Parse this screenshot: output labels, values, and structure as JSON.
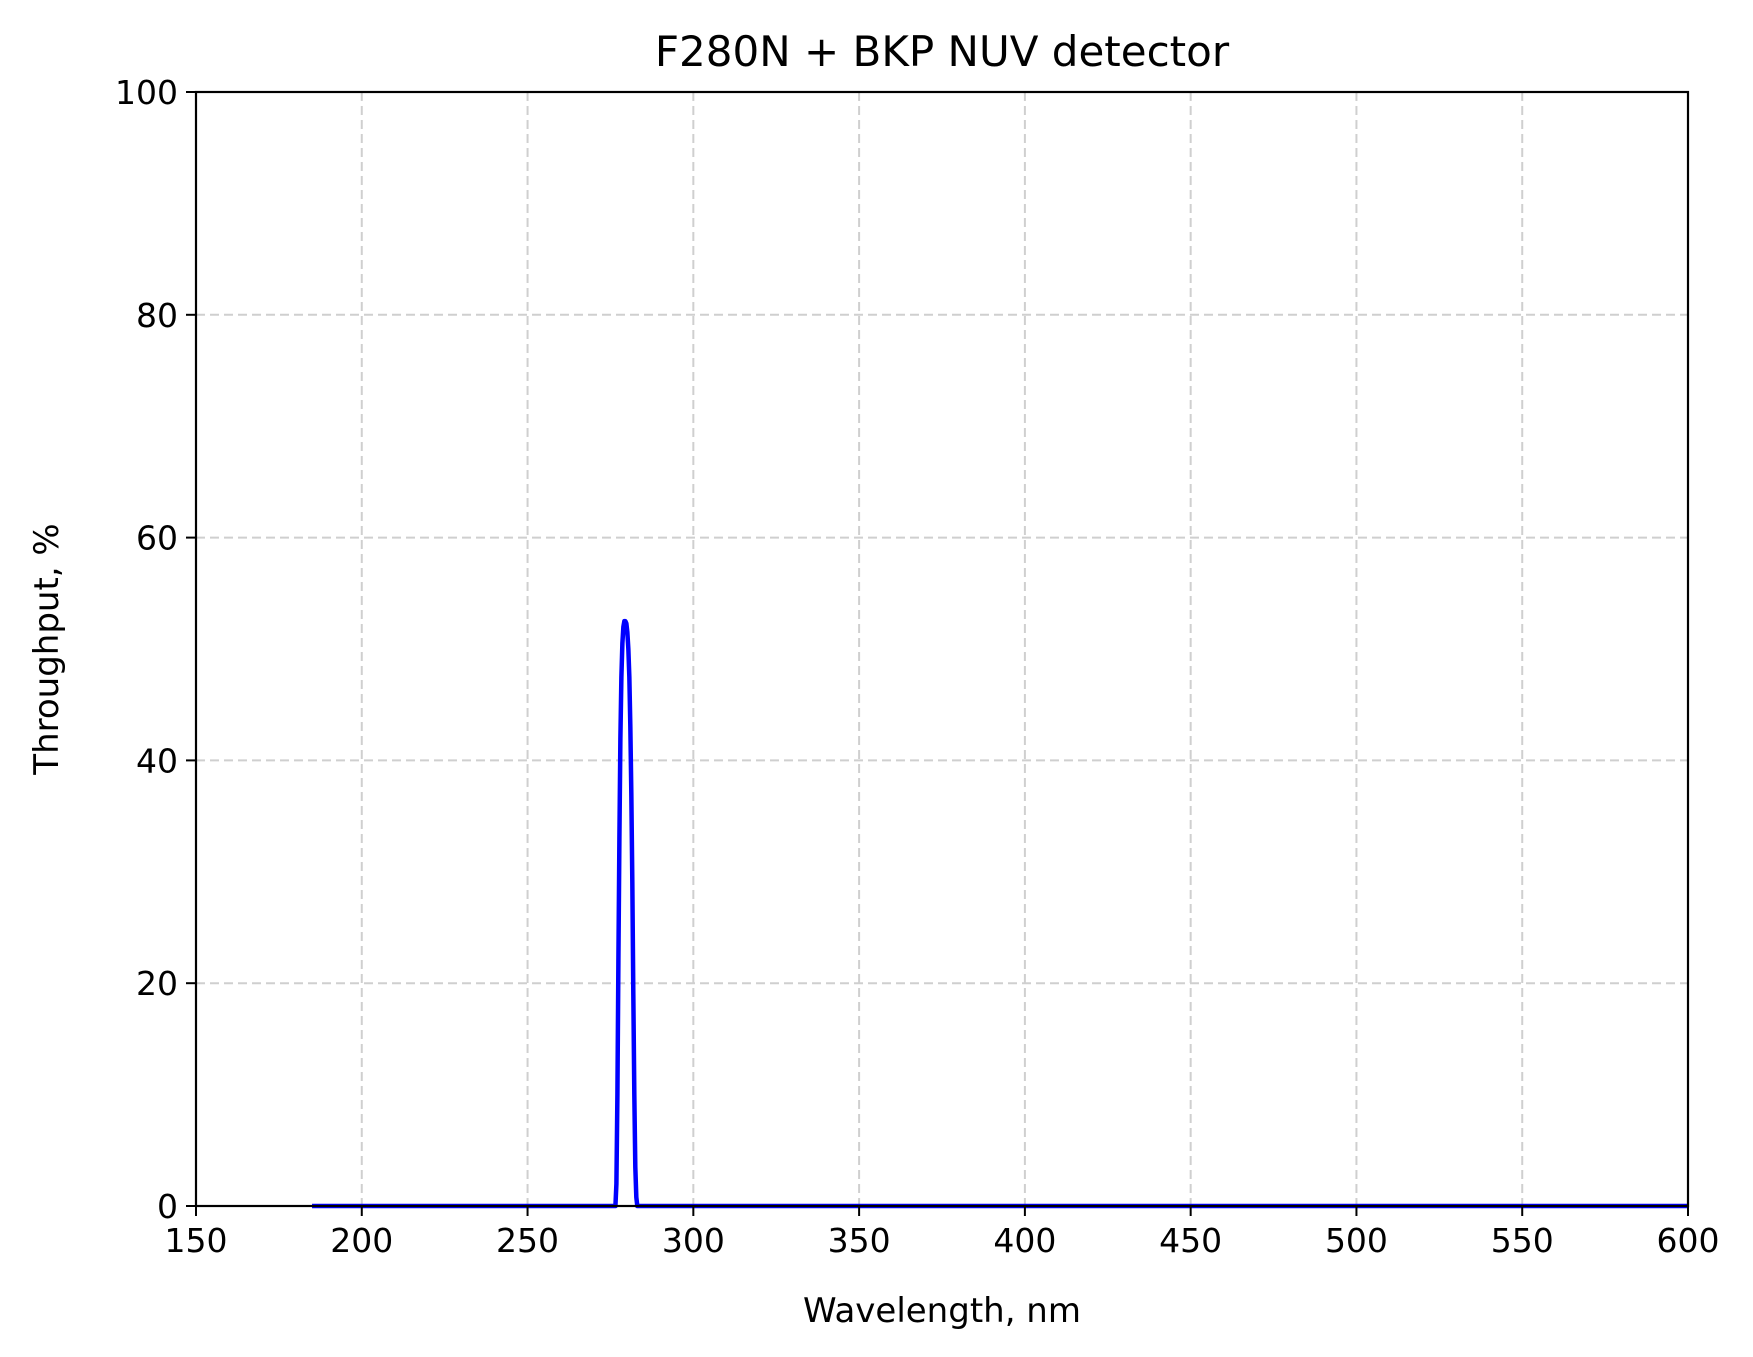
{
  "chart_data": {
    "type": "line",
    "title": "F280N + BKP NUV detector",
    "xlabel": "Wavelength, nm",
    "ylabel": "Throughput, %",
    "xlim": [
      150,
      600
    ],
    "ylim": [
      0,
      100
    ],
    "xticks": [
      150,
      200,
      250,
      300,
      350,
      400,
      450,
      500,
      550,
      600
    ],
    "yticks": [
      0,
      20,
      40,
      60,
      80,
      100
    ],
    "grid": true,
    "series": [
      {
        "color": "#0000ff",
        "x": [
          185,
          276.5,
          276.8,
          277.1,
          277.4,
          277.7,
          278.0,
          278.3,
          278.6,
          278.9,
          279.2,
          279.5,
          279.8,
          280.1,
          280.4,
          280.7,
          281.0,
          281.3,
          281.6,
          281.9,
          282.2,
          282.5,
          282.8,
          283.1,
          283.4,
          600
        ],
        "y": [
          0,
          0,
          2,
          10,
          22,
          33,
          42,
          47.5,
          50.5,
          52,
          52.5,
          52.5,
          52.3,
          51.5,
          50,
          47.5,
          43,
          37,
          29,
          19,
          10,
          3.5,
          0.8,
          0,
          0,
          0
        ]
      }
    ]
  }
}
